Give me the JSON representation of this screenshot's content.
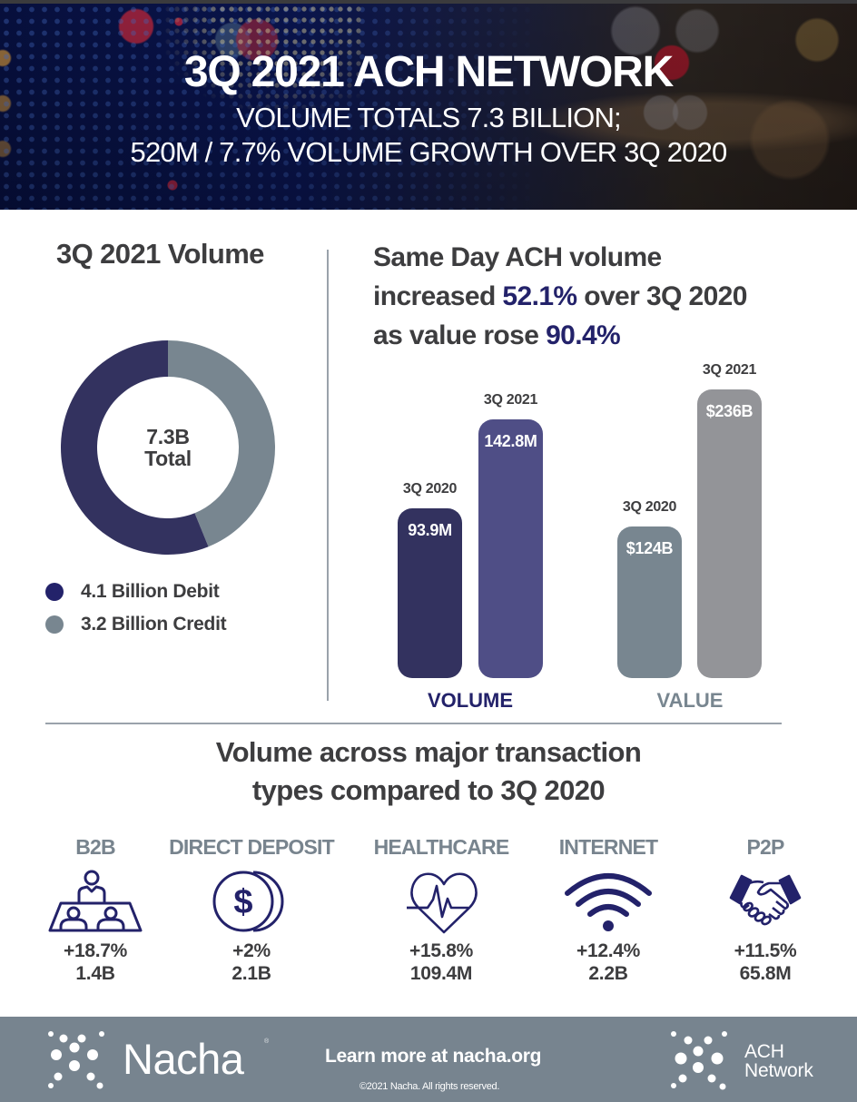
{
  "header": {
    "title": "3Q 2021 ACH NETWORK",
    "subtitle_line1": "VOLUME TOTALS  7.3 BILLION;",
    "subtitle_line2": "520M / 7.7% VOLUME GROWTH OVER 3Q 2020"
  },
  "left_panel": {
    "title": "3Q 2021 Volume",
    "center_value": "7.3B",
    "center_label": "Total"
  },
  "right_panel": {
    "heading_parts": {
      "line1": "Same Day ACH volume",
      "line2_pre": "increased ",
      "line2_hl": "52.1%",
      "line2_post": " over 3Q 2020",
      "line3_pre": "as value rose ",
      "line3_hl": "90.4%"
    }
  },
  "transaction_section": {
    "title_line1": "Volume across major transaction",
    "title_line2": "types compared to 3Q 2020",
    "types": [
      {
        "name": "B2B",
        "icon": "meeting-table-icon",
        "growth": "+18.7%",
        "volume": "1.4B"
      },
      {
        "name": "DIRECT DEPOSIT",
        "icon": "coins-dollar-icon",
        "growth": "+2%",
        "volume": "2.1B"
      },
      {
        "name": "HEALTHCARE",
        "icon": "heart-pulse-icon",
        "growth": "+15.8%",
        "volume": "109.4M"
      },
      {
        "name": "INTERNET",
        "icon": "wifi-icon",
        "growth": "+12.4%",
        "volume": "2.2B"
      },
      {
        "name": "P2P",
        "icon": "handshake-icon",
        "growth": "+11.5%",
        "volume": "65.8M"
      }
    ]
  },
  "footer": {
    "brand": "Nacha",
    "brand_mark": "®",
    "link_text": "Learn more at nacha.org",
    "copyright": "©2021 Nacha. All rights reserved.",
    "network_line1": "ACH",
    "network_line2": "Network"
  },
  "colors": {
    "debit": "#33325f",
    "credit": "#788690",
    "volume_2020": "#33325f",
    "volume_2021": "#4f4e86",
    "value_2020": "#788690",
    "value_2021": "#939498",
    "highlight": "#23226a",
    "icon": "#23226a",
    "footer_bg": "#77848f"
  },
  "chart_data": [
    {
      "type": "pie",
      "title": "3Q 2021 Volume",
      "variant": "donut",
      "center_text": "7.3B Total",
      "total": 7.3,
      "unit": "Billion",
      "slices": [
        {
          "name": "Debit",
          "label": "4.1 Billion Debit",
          "value": 4.1,
          "color": "#33325f"
        },
        {
          "name": "Credit",
          "label": "3.2 Billion Credit",
          "value": 3.2,
          "color": "#788690"
        }
      ],
      "legend": "bottom-left"
    },
    {
      "type": "bar",
      "title": "Same Day ACH volume increased 52.1% over 3Q 2020 as value rose 90.4%",
      "groups": [
        {
          "name": "VOLUME",
          "color": "#23226a",
          "unit": "M",
          "bars": [
            {
              "category": "3Q 2020",
              "value": 93.9,
              "label": "93.9M",
              "color": "#33325f"
            },
            {
              "category": "3Q 2021",
              "value": 142.8,
              "label": "142.8M",
              "color": "#4f4e86"
            }
          ]
        },
        {
          "name": "VALUE",
          "color": "#788690",
          "unit": "$B",
          "bars": [
            {
              "category": "3Q 2020",
              "value": 124,
              "label": "$124B",
              "color": "#788690"
            },
            {
              "category": "3Q 2021",
              "value": 236,
              "label": "$236B",
              "color": "#939498"
            }
          ]
        }
      ],
      "xlabel": "",
      "ylabel": "",
      "grid": false
    }
  ]
}
